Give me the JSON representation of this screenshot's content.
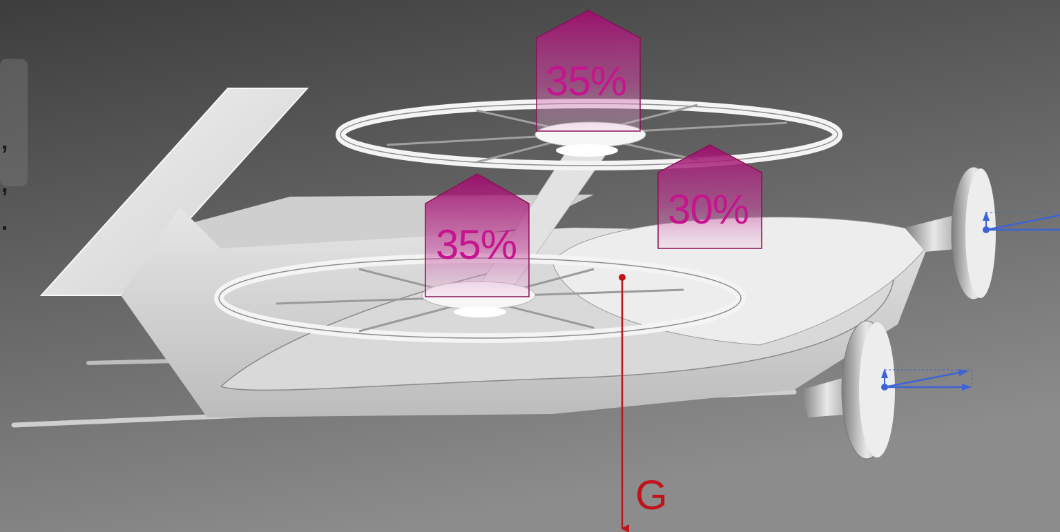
{
  "lift_shares": {
    "top_rotor": "35%",
    "front_rotor": "35%",
    "wing": "30%"
  },
  "gravity_label": "G",
  "left_text_fragments": [
    ",",
    ",",
    "."
  ],
  "colors": {
    "background_top": "#3c3c3c",
    "background_bottom": "#8a8a8a",
    "lift_arrow_fill": "#a0126e",
    "lift_text": "#c6148e",
    "gravity_arrow": "#c0141a",
    "thrust_arrow": "#3d63d6"
  }
}
